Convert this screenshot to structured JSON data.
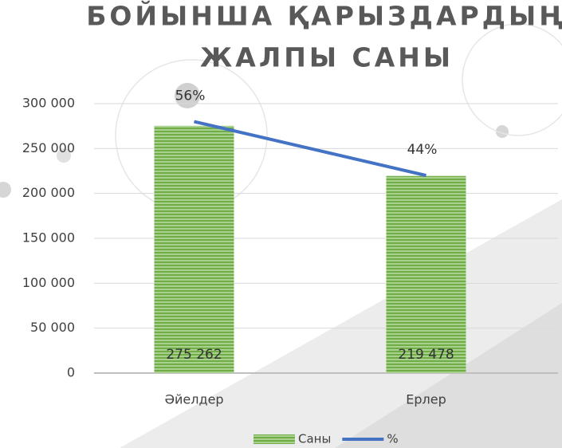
{
  "chart_data": {
    "type": "bar-line",
    "title": [
      "БОЙЫНША ҚАРЫЗДАРДЫҢ",
      "ЖАЛПЫ САНЫ"
    ],
    "categories": [
      "Әйелдер",
      "Ерлер"
    ],
    "series": [
      {
        "name": "Саны",
        "type": "bar",
        "color": "#70ad47",
        "values": [
          275262,
          219478
        ],
        "value_labels": [
          "275 262",
          "219 478"
        ]
      },
      {
        "name": "%",
        "type": "line",
        "color": "#4472c4",
        "axis": "y2",
        "values": [
          56,
          44
        ],
        "value_labels": [
          "56%",
          "44%"
        ]
      }
    ],
    "ylim": [
      0,
      300000
    ],
    "yticks": [
      0,
      {
        "value": 50000,
        "label": "50 000"
      },
      {
        "value": 100000,
        "label": "100 000"
      },
      {
        "value": 150000,
        "label": "150 000"
      },
      {
        "value": 200000,
        "label": "200 000"
      },
      {
        "value": 250000,
        "label": "250 000"
      },
      {
        "value": 300000,
        "label": "300 000"
      }
    ],
    "y2lim": [
      0,
      60
    ],
    "grid": true,
    "legend": "bottom"
  }
}
